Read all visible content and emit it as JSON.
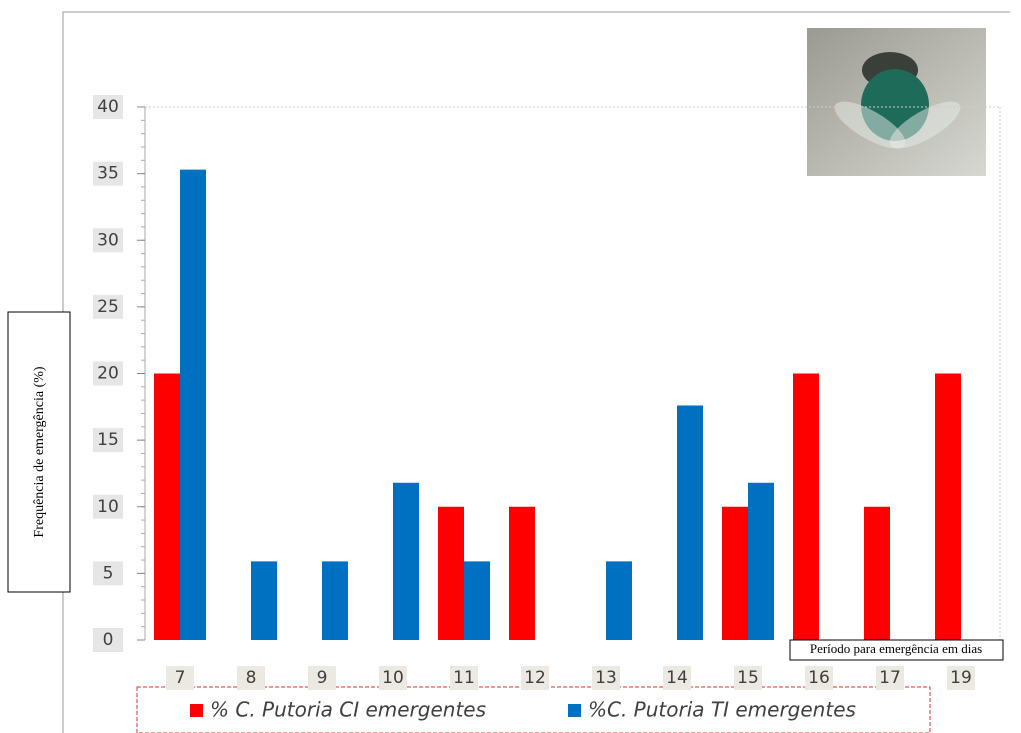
{
  "chart_data": {
    "type": "bar",
    "y_label": "Frequência de emergência (%)",
    "x_label": "Período para emergência em dias",
    "categories": [
      "7",
      "8",
      "9",
      "10",
      "11",
      "12",
      "13",
      "14",
      "15",
      "16",
      "17",
      "19"
    ],
    "series": [
      {
        "name": "% C. Putoria CI emergentes",
        "color": "#ff0000",
        "values": [
          20,
          0,
          0,
          0,
          10,
          10,
          0,
          0,
          10,
          20,
          10,
          20
        ]
      },
      {
        "name": "%C. Putoria TI emergentes",
        "color": "#0070c0",
        "values": [
          35.3,
          5.9,
          5.9,
          11.8,
          5.9,
          0,
          5.9,
          17.6,
          11.8,
          0,
          0,
          0
        ]
      }
    ],
    "ylim": [
      0,
      40
    ],
    "yticks": [
      0,
      5,
      10,
      15,
      20,
      25,
      30,
      35,
      40
    ]
  }
}
